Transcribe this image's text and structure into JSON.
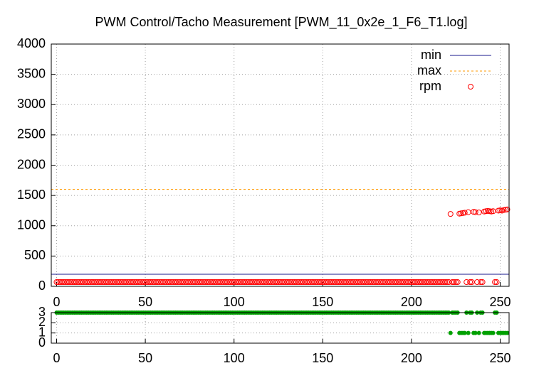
{
  "chart_data": [
    {
      "type": "scatter",
      "title": "PWM Control/Tacho Measurement [PWM_11_0x2e_1_F6_T1.log]",
      "xlim": [
        -3,
        255
      ],
      "xticks": [
        0,
        50,
        100,
        150,
        200,
        250
      ],
      "ylim": [
        0,
        4000
      ],
      "yticks": [
        0,
        500,
        1000,
        1500,
        2000,
        2500,
        3000,
        3500,
        4000
      ],
      "grid": true,
      "legend": "top-right",
      "x": [
        0,
        1,
        2,
        3,
        4,
        5,
        6,
        7,
        8,
        9,
        10,
        11,
        12,
        13,
        14,
        15,
        16,
        17,
        18,
        19,
        20,
        21,
        22,
        23,
        24,
        25,
        26,
        27,
        28,
        29,
        30,
        31,
        32,
        33,
        34,
        35,
        36,
        37,
        38,
        39,
        40,
        41,
        42,
        43,
        44,
        45,
        46,
        47,
        48,
        49,
        50,
        51,
        52,
        53,
        54,
        55,
        56,
        57,
        58,
        59,
        60,
        61,
        62,
        63,
        64,
        65,
        66,
        67,
        68,
        69,
        70,
        71,
        72,
        73,
        74,
        75,
        76,
        77,
        78,
        79,
        80,
        81,
        82,
        83,
        84,
        85,
        86,
        87,
        88,
        89,
        90,
        91,
        92,
        93,
        94,
        95,
        96,
        97,
        98,
        99,
        100,
        101,
        102,
        103,
        104,
        105,
        106,
        107,
        108,
        109,
        110,
        111,
        112,
        113,
        114,
        115,
        116,
        117,
        118,
        119,
        120,
        121,
        122,
        123,
        124,
        125,
        126,
        127,
        128,
        129,
        130,
        131,
        132,
        133,
        134,
        135,
        136,
        137,
        138,
        139,
        140,
        141,
        142,
        143,
        144,
        145,
        146,
        147,
        148,
        149,
        150,
        151,
        152,
        153,
        154,
        155,
        156,
        157,
        158,
        159,
        160,
        161,
        162,
        163,
        164,
        165,
        166,
        167,
        168,
        169,
        170,
        171,
        172,
        173,
        174,
        175,
        176,
        177,
        178,
        179,
        180,
        181,
        182,
        183,
        184,
        185,
        186,
        187,
        188,
        189,
        190,
        191,
        192,
        193,
        194,
        195,
        196,
        197,
        198,
        199,
        200,
        201,
        202,
        203,
        204,
        205,
        206,
        207,
        208,
        209,
        210,
        211,
        212,
        213,
        214,
        215,
        216,
        217,
        218,
        219,
        220,
        221,
        222,
        223,
        224,
        225,
        226,
        227,
        228,
        229,
        230,
        231,
        232,
        233,
        234,
        235,
        236,
        237,
        238,
        239,
        240,
        241,
        242,
        243,
        244,
        245,
        246,
        247,
        248,
        249,
        250,
        251,
        252,
        253,
        254
      ],
      "series": [
        {
          "name": "min",
          "color": "#1a1a8c",
          "style": "line",
          "value": 200
        },
        {
          "name": "max",
          "color": "#ff9900",
          "style": "dashed",
          "value": 1600
        },
        {
          "name": "rpm",
          "color": "#ff0000",
          "style": "points",
          "values": [
            70,
            70,
            70,
            70,
            70,
            70,
            70,
            70,
            70,
            70,
            70,
            70,
            70,
            70,
            70,
            70,
            70,
            70,
            70,
            70,
            70,
            70,
            70,
            70,
            70,
            70,
            70,
            70,
            70,
            70,
            70,
            70,
            70,
            70,
            70,
            70,
            70,
            70,
            70,
            70,
            70,
            70,
            70,
            70,
            70,
            70,
            70,
            70,
            70,
            70,
            70,
            70,
            70,
            70,
            70,
            70,
            70,
            70,
            70,
            70,
            70,
            70,
            70,
            70,
            70,
            70,
            70,
            70,
            70,
            70,
            70,
            70,
            70,
            70,
            70,
            70,
            70,
            70,
            70,
            70,
            70,
            70,
            70,
            70,
            70,
            70,
            70,
            70,
            70,
            70,
            70,
            70,
            70,
            70,
            70,
            70,
            70,
            70,
            70,
            70,
            70,
            70,
            70,
            70,
            70,
            70,
            70,
            70,
            70,
            70,
            70,
            70,
            70,
            70,
            70,
            70,
            70,
            70,
            70,
            70,
            70,
            70,
            70,
            70,
            70,
            70,
            70,
            70,
            70,
            70,
            70,
            70,
            70,
            70,
            70,
            70,
            70,
            70,
            70,
            70,
            70,
            70,
            70,
            70,
            70,
            70,
            70,
            70,
            70,
            70,
            70,
            70,
            70,
            70,
            70,
            70,
            70,
            70,
            70,
            70,
            70,
            70,
            70,
            70,
            70,
            70,
            70,
            70,
            70,
            70,
            70,
            70,
            70,
            70,
            70,
            70,
            70,
            70,
            70,
            70,
            70,
            70,
            70,
            70,
            70,
            70,
            70,
            70,
            70,
            70,
            70,
            70,
            70,
            70,
            70,
            70,
            70,
            70,
            70,
            70,
            70,
            70,
            70,
            70,
            70,
            70,
            70,
            70,
            70,
            70,
            70,
            70,
            70,
            70,
            70,
            70,
            70,
            70,
            70,
            70,
            70,
            70,
            1195,
            70,
            70,
            70,
            70,
            1200,
            1205,
            1210,
            1215,
            70,
            1225,
            70,
            70,
            1230,
            1225,
            70,
            1220,
            70,
            70,
            1235,
            1240,
            1245,
            1240,
            1235,
            1240,
            70,
            70,
            1250,
            1255,
            1250,
            1260,
            1265,
            1270
          ]
        }
      ]
    },
    {
      "type": "scatter",
      "xlim": [
        -3,
        255
      ],
      "xticks": [
        0,
        50,
        100,
        150,
        200,
        250
      ],
      "ylim": [
        0,
        3
      ],
      "yticks": [
        0,
        1,
        2,
        3
      ],
      "grid": true,
      "series": [
        {
          "color": "#00a000",
          "style": "dots",
          "values": [
            3,
            3,
            3,
            3,
            3,
            3,
            3,
            3,
            3,
            3,
            3,
            3,
            3,
            3,
            3,
            3,
            3,
            3,
            3,
            3,
            3,
            3,
            3,
            3,
            3,
            3,
            3,
            3,
            3,
            3,
            3,
            3,
            3,
            3,
            3,
            3,
            3,
            3,
            3,
            3,
            3,
            3,
            3,
            3,
            3,
            3,
            3,
            3,
            3,
            3,
            3,
            3,
            3,
            3,
            3,
            3,
            3,
            3,
            3,
            3,
            3,
            3,
            3,
            3,
            3,
            3,
            3,
            3,
            3,
            3,
            3,
            3,
            3,
            3,
            3,
            3,
            3,
            3,
            3,
            3,
            3,
            3,
            3,
            3,
            3,
            3,
            3,
            3,
            3,
            3,
            3,
            3,
            3,
            3,
            3,
            3,
            3,
            3,
            3,
            3,
            3,
            3,
            3,
            3,
            3,
            3,
            3,
            3,
            3,
            3,
            3,
            3,
            3,
            3,
            3,
            3,
            3,
            3,
            3,
            3,
            3,
            3,
            3,
            3,
            3,
            3,
            3,
            3,
            3,
            3,
            3,
            3,
            3,
            3,
            3,
            3,
            3,
            3,
            3,
            3,
            3,
            3,
            3,
            3,
            3,
            3,
            3,
            3,
            3,
            3,
            3,
            3,
            3,
            3,
            3,
            3,
            3,
            3,
            3,
            3,
            3,
            3,
            3,
            3,
            3,
            3,
            3,
            3,
            3,
            3,
            3,
            3,
            3,
            3,
            3,
            3,
            3,
            3,
            3,
            3,
            3,
            3,
            3,
            3,
            3,
            3,
            3,
            3,
            3,
            3,
            3,
            3,
            3,
            3,
            3,
            3,
            3,
            3,
            3,
            3,
            3,
            3,
            3,
            3,
            3,
            3,
            3,
            3,
            3,
            3,
            3,
            3,
            3,
            3,
            3,
            3,
            3,
            3,
            3,
            3,
            3,
            3,
            1,
            3,
            3,
            3,
            3,
            1,
            1,
            1,
            1,
            3,
            1,
            3,
            3,
            1,
            1,
            3,
            1,
            3,
            3,
            1,
            1,
            1,
            1,
            1,
            1,
            3,
            3,
            1,
            1,
            1,
            1,
            1,
            1
          ]
        }
      ]
    }
  ]
}
